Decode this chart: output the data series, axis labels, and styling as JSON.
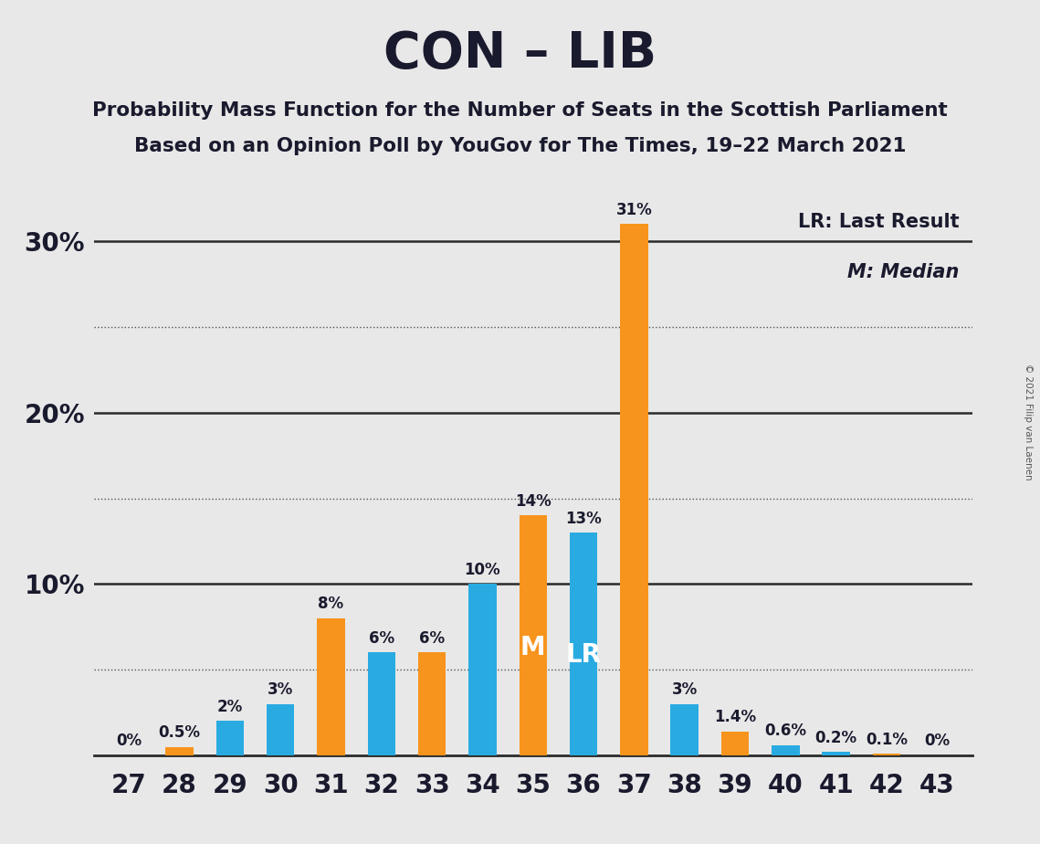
{
  "seats": [
    27,
    28,
    29,
    30,
    31,
    32,
    33,
    34,
    35,
    36,
    37,
    38,
    39,
    40,
    41,
    42,
    43
  ],
  "values": [
    0.0,
    0.5,
    2.0,
    3.0,
    8.0,
    6.0,
    6.0,
    10.0,
    14.0,
    13.0,
    31.0,
    3.0,
    1.4,
    0.6,
    0.2,
    0.1,
    0.0
  ],
  "colors": [
    "#F7941D",
    "#F7941D",
    "#29ABE2",
    "#29ABE2",
    "#F7941D",
    "#29ABE2",
    "#F7941D",
    "#29ABE2",
    "#F7941D",
    "#29ABE2",
    "#F7941D",
    "#29ABE2",
    "#F7941D",
    "#29ABE2",
    "#29ABE2",
    "#F7941D",
    "#29ABE2"
  ],
  "bar_labels": [
    "0%",
    "0.5%",
    "2%",
    "3%",
    "8%",
    "6%",
    "6%",
    "10%",
    "14%",
    "13%",
    "31%",
    "3%",
    "1.4%",
    "0.6%",
    "0.2%",
    "0.1%",
    "0%"
  ],
  "inside_labels": [
    "",
    "",
    "",
    "",
    "",
    "",
    "",
    "",
    "M",
    "LR",
    "",
    "",
    "",
    "",
    "",
    "",
    ""
  ],
  "blue_color": "#29ABE2",
  "orange_color": "#F7941D",
  "background_color": "#E8E8E8",
  "title": "CON – LIB",
  "subtitle1": "Probability Mass Function for the Number of Seats in the Scottish Parliament",
  "subtitle2": "Based on an Opinion Poll by YouGov for The Times, 19–22 March 2021",
  "legend_lr": "LR: Last Result",
  "legend_m": "M: Median",
  "copyright": "© 2021 Filip van Laenen",
  "ylim_max": 33,
  "major_yticks": [
    10,
    20,
    30
  ],
  "minor_yticks": [
    5,
    15,
    25
  ],
  "bar_width": 0.55
}
